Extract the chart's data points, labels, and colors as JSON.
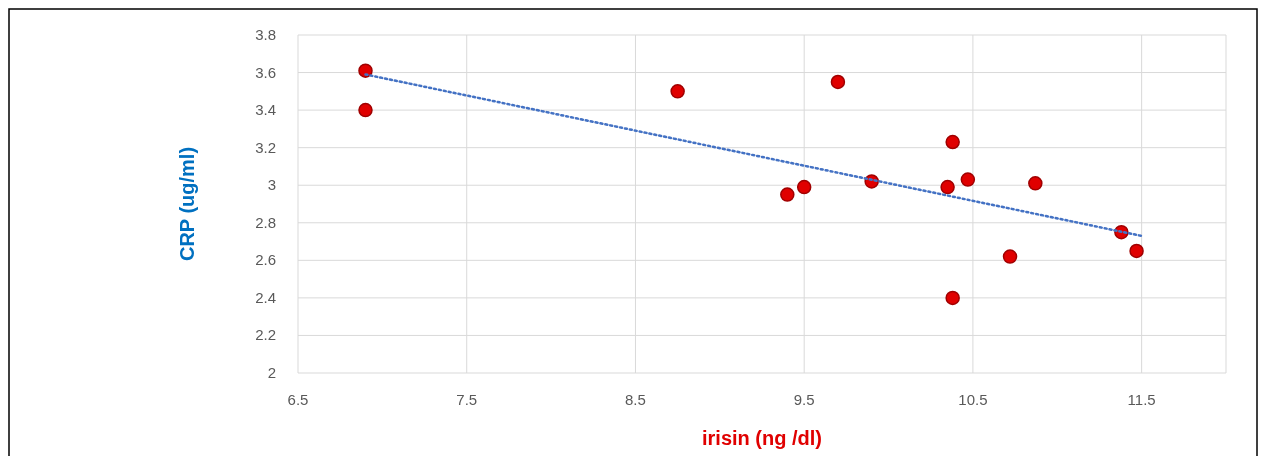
{
  "chart_data": {
    "type": "scatter",
    "xlabel": "irisin (ng /dl)",
    "ylabel": "CRP (ug/ml)",
    "xlim": [
      6.5,
      12
    ],
    "ylim": [
      2,
      3.8
    ],
    "xticks": [
      6.5,
      7.5,
      8.5,
      9.5,
      10.5,
      11.5
    ],
    "yticks": [
      2,
      2.2,
      2.4,
      2.6,
      2.8,
      3,
      3.2,
      3.4,
      3.6,
      3.8
    ],
    "grid": true,
    "series": [
      {
        "marker": "circle",
        "color": "#e00000",
        "x": [
          6.9,
          6.9,
          8.75,
          9.7,
          9.4,
          9.5,
          9.9,
          10.38,
          10.35,
          10.47,
          10.87,
          10.72,
          10.38,
          11.38,
          11.47
        ],
        "values": [
          3.61,
          3.4,
          3.5,
          3.55,
          2.95,
          2.99,
          3.02,
          3.23,
          2.99,
          3.03,
          3.01,
          2.62,
          2.4,
          2.75,
          2.65
        ]
      },
      {
        "type": "line",
        "color": "#4472c4",
        "line_style": "dotted",
        "x": [
          6.9,
          11.5
        ],
        "values": [
          3.59,
          2.73
        ]
      }
    ]
  }
}
